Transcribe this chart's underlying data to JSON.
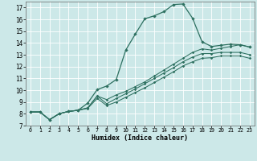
{
  "xlabel": "Humidex (Indice chaleur)",
  "xlim": [
    -0.5,
    23.5
  ],
  "ylim": [
    7,
    17.5
  ],
  "xtick_vals": [
    0,
    1,
    2,
    3,
    4,
    5,
    6,
    7,
    8,
    9,
    10,
    11,
    12,
    13,
    14,
    15,
    16,
    17,
    18,
    19,
    20,
    21,
    22,
    23
  ],
  "ytick_vals": [
    7,
    8,
    9,
    10,
    11,
    12,
    13,
    14,
    15,
    16,
    17
  ],
  "background_color": "#cce8e8",
  "grid_color": "#ffffff",
  "line_color": "#2d7060",
  "series": [
    {
      "x": [
        0,
        1,
        2,
        3,
        4,
        5,
        6,
        7,
        8,
        9,
        10,
        11,
        12,
        13,
        14,
        15,
        16,
        17,
        18,
        19,
        20,
        21,
        22,
        23
      ],
      "y": [
        8.15,
        8.15,
        7.5,
        8.0,
        8.2,
        8.3,
        8.9,
        10.05,
        10.35,
        10.9,
        13.4,
        14.75,
        16.05,
        16.3,
        16.65,
        17.25,
        17.3,
        16.1,
        14.1,
        13.7,
        13.8,
        13.9,
        13.85,
        13.65
      ]
    },
    {
      "x": [
        0,
        1,
        2,
        3,
        4,
        5,
        6,
        7,
        8,
        9,
        10,
        11,
        12,
        13,
        14,
        15,
        16,
        17,
        18,
        19,
        20,
        21,
        22,
        23
      ],
      "y": [
        8.15,
        8.15,
        7.5,
        8.0,
        8.2,
        8.3,
        8.5,
        9.5,
        9.2,
        9.6,
        9.9,
        10.3,
        10.7,
        11.2,
        11.7,
        12.2,
        12.7,
        13.2,
        13.5,
        13.4,
        13.55,
        13.7,
        13.85,
        13.65
      ]
    },
    {
      "x": [
        0,
        1,
        2,
        3,
        4,
        5,
        6,
        7,
        8,
        9,
        10,
        11,
        12,
        13,
        14,
        15,
        16,
        17,
        18,
        19,
        20,
        21,
        22,
        23
      ],
      "y": [
        8.15,
        8.15,
        7.5,
        8.0,
        8.2,
        8.3,
        8.5,
        9.5,
        8.85,
        9.3,
        9.7,
        10.1,
        10.55,
        11.0,
        11.45,
        11.9,
        12.4,
        12.8,
        13.1,
        13.1,
        13.2,
        13.2,
        13.2,
        13.0
      ]
    },
    {
      "x": [
        0,
        1,
        2,
        3,
        4,
        5,
        6,
        7,
        8,
        9,
        10,
        11,
        12,
        13,
        14,
        15,
        16,
        17,
        18,
        19,
        20,
        21,
        22,
        23
      ],
      "y": [
        8.15,
        8.15,
        7.5,
        8.0,
        8.2,
        8.3,
        8.45,
        9.3,
        8.7,
        9.0,
        9.4,
        9.8,
        10.2,
        10.65,
        11.1,
        11.55,
        12.05,
        12.4,
        12.7,
        12.75,
        12.9,
        12.9,
        12.9,
        12.7
      ]
    }
  ]
}
